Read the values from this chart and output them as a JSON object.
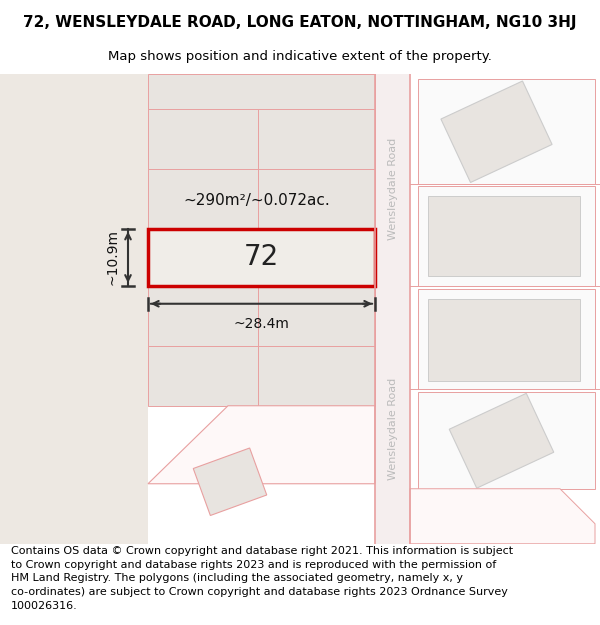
{
  "title": "72, WENSLEYDALE ROAD, LONG EATON, NOTTINGHAM, NG10 3HJ",
  "subtitle": "Map shows position and indicative extent of the property.",
  "footer_text": "Contains OS data © Crown copyright and database right 2021. This information is subject\nto Crown copyright and database rights 2023 and is reproduced with the permission of\nHM Land Registry. The polygons (including the associated geometry, namely x, y\nco-ordinates) are subject to Crown copyright and database rights 2023 Ordnance Survey\n100026316.",
  "label_72": "72",
  "area_label": "~290m²/~0.072ac.",
  "width_label": "~28.4m",
  "height_label": "~10.9m",
  "road_label_top": "Wensleydale Road",
  "road_label_bottom": "Wensleydale Road",
  "title_fontsize": 11,
  "subtitle_fontsize": 9.5,
  "footer_fontsize": 8.0,
  "bg_left": "#ede8e2",
  "bg_map": "#ffffff",
  "bg_right": "#ffffff",
  "road_fill": "#f5eeee",
  "road_edge": "#e8a0a0",
  "plot_fill": "#e8e4e0",
  "plot_edge": "#e8a0a0",
  "highlight_outline": "#cc0000",
  "highlight_fill": "#f0ede8",
  "dim_color": "#333333"
}
